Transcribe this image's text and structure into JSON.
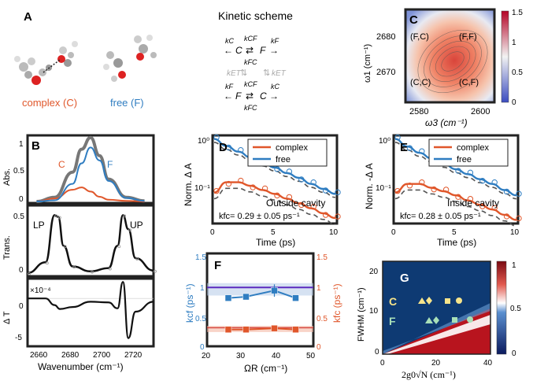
{
  "panel_a": {
    "label": "A",
    "complex_label": "complex (C)",
    "free_label": "free (F)",
    "complex_color": "#e0572b",
    "free_color": "#2f7dc1"
  },
  "kinetic": {
    "title": "Kinetic scheme",
    "top_left": "kC",
    "top_right": "kF",
    "top_C": "C",
    "top_F": "F",
    "top_kcf": "kCF",
    "top_kfc": "kFC",
    "mid_left": "kET",
    "mid_right": "kET",
    "bot_left": "kF",
    "bot_right": "kC",
    "bot_F": "F",
    "bot_C": "C",
    "bot_kcf": "kCF",
    "bot_kfc": "kFC"
  },
  "panel_b": {
    "label": "B",
    "abs_ylabel": "Abs.",
    "trans_ylabel": "Trans.",
    "diff_ylabel": "Δ T",
    "xlabel": "Wavenumber (cm⁻¹)",
    "c_label": "C",
    "f_label": "F",
    "lp_label": "LP",
    "up_label": "UP",
    "exponent": "×10⁻⁴",
    "xticks": [
      "2660",
      "2680",
      "2700",
      "2720"
    ],
    "abs_yticks": [
      "0",
      "0.5",
      "1"
    ],
    "trans_yticks": [
      "0",
      "0.5"
    ],
    "diff_yticks": [
      "0",
      "-5"
    ]
  },
  "panel_c": {
    "label": "C",
    "ylabel": "ω1 (cm⁻¹)",
    "xlabel": "ω3 (cm⁻¹)",
    "yticks": [
      "2680",
      "2670"
    ],
    "xticks": [
      "2580",
      "2600"
    ],
    "colorbar_ticks": [
      "1.5",
      "1",
      "0.5",
      "0"
    ],
    "peaks": [
      "(F,C)",
      "(F,F)",
      "(C,C)",
      "(C,F)"
    ]
  },
  "panel_d": {
    "label": "D",
    "ylabel": "Norm. Δ A",
    "xlabel": "Time (ps)",
    "legend": [
      "complex",
      "free"
    ],
    "caption": "Outside cavity",
    "kfc_text": "kfc= 0.29 ± 0.05 ps⁻¹",
    "xticks": [
      "0",
      "5",
      "10"
    ],
    "yticks": [
      "10⁰",
      "10⁻¹"
    ]
  },
  "panel_e": {
    "label": "E",
    "ylabel": "Norm. -Δ A",
    "xlabel": "Time (ps)",
    "legend": [
      "complex",
      "free"
    ],
    "caption": "Inside cavity",
    "kfc_text": "kfc= 0.28 ± 0.05 ps⁻¹",
    "xticks": [
      "0",
      "5",
      "10"
    ],
    "yticks": [
      "10⁰",
      "10⁻¹"
    ]
  },
  "panel_f": {
    "label": "F",
    "ylabel_left": "kcf (ps⁻¹)",
    "ylabel_right": "kfc (ps⁻¹)",
    "xlabel": "ΩR (cm⁻¹)",
    "xticks": [
      "20",
      "30",
      "40",
      "50"
    ],
    "yticks_left": [
      "0",
      "0.5",
      "1",
      "1.5"
    ],
    "yticks_right": [
      "0",
      "0.5",
      "1",
      "1.5"
    ]
  },
  "panel_g": {
    "label": "G",
    "ylabel": "FWHM (cm⁻¹)",
    "xlabel": "2g0√N (cm⁻¹)",
    "c_label": "C",
    "f_label": "F",
    "xticks": [
      "0",
      "20",
      "40"
    ],
    "yticks": [
      "0",
      "10",
      "20"
    ],
    "colorbar_ticks": [
      "1",
      "0.5",
      "0"
    ]
  },
  "chart_data": [
    {
      "type": "line",
      "panel": "B-top",
      "x": [
        2660,
        2670,
        2680,
        2685,
        2690,
        2695,
        2700,
        2710,
        2720
      ],
      "series": [
        {
          "name": "C",
          "values": [
            0.0,
            0.05,
            0.2,
            0.24,
            0.17,
            0.08,
            0.03,
            0.01,
            0.0
          ]
        },
        {
          "name": "F",
          "values": [
            0.0,
            0.02,
            0.3,
            0.65,
            0.92,
            0.7,
            0.35,
            0.06,
            0.01
          ]
        }
      ],
      "ylim": [
        0,
        1.1
      ]
    },
    {
      "type": "line",
      "panel": "B-middle",
      "x": [
        2655,
        2665,
        2670,
        2672,
        2675,
        2680,
        2690,
        2700,
        2705,
        2708,
        2711,
        2715,
        2725
      ],
      "series": [
        {
          "values": [
            0.02,
            0.15,
            0.72,
            0.7,
            0.35,
            0.1,
            0.04,
            0.08,
            0.35,
            0.72,
            0.55,
            0.2,
            0.05
          ]
        }
      ],
      "ylim": [
        0,
        0.8
      ]
    },
    {
      "type": "line",
      "panel": "B-bottom",
      "x": [
        2655,
        2665,
        2670,
        2673,
        2680,
        2690,
        2700,
        2705,
        2708,
        2711,
        2715,
        2725
      ],
      "series": [
        {
          "values": [
            0.0,
            0.0,
            -1.0,
            -1.6,
            -1.3,
            -0.5,
            -0.6,
            -1.5,
            2.5,
            -6.0,
            -2.0,
            -0.5
          ]
        }
      ],
      "ylim": [
        -7,
        3
      ]
    },
    {
      "type": "line",
      "panel": "D",
      "x": [
        0,
        1,
        2,
        3,
        4,
        5,
        6,
        7,
        8,
        9,
        10
      ],
      "series": [
        {
          "name": "complex",
          "values": [
            0.08,
            0.13,
            0.13,
            0.11,
            0.09,
            0.075,
            0.06,
            0.048,
            0.038,
            0.03,
            0.024
          ]
        },
        {
          "name": "free",
          "values": [
            1.0,
            0.72,
            0.55,
            0.42,
            0.33,
            0.26,
            0.2,
            0.16,
            0.12,
            0.095,
            0.075
          ]
        }
      ],
      "ylim": [
        0.02,
        1.1
      ]
    },
    {
      "type": "line",
      "panel": "E",
      "x": [
        0,
        1,
        2,
        3,
        4,
        5,
        6,
        7,
        8,
        9,
        10
      ],
      "series": [
        {
          "name": "complex",
          "values": [
            0.08,
            0.12,
            0.12,
            0.1,
            0.085,
            0.07,
            0.055,
            0.045,
            0.036,
            0.028,
            0.022
          ]
        },
        {
          "name": "free",
          "values": [
            1.0,
            0.7,
            0.52,
            0.4,
            0.31,
            0.24,
            0.19,
            0.15,
            0.12,
            0.09,
            0.07
          ]
        }
      ],
      "ylim": [
        0.02,
        1.1
      ]
    },
    {
      "type": "scatter",
      "panel": "F",
      "x": [
        26,
        31,
        39,
        45
      ],
      "series": [
        {
          "name": "kcf",
          "values": [
            0.78,
            0.8,
            0.9,
            0.78
          ]
        },
        {
          "name": "kfc",
          "values": [
            0.27,
            0.27,
            0.29,
            0.27
          ]
        }
      ],
      "xlim": [
        20,
        50
      ],
      "ylim": [
        0,
        1.5
      ]
    }
  ]
}
